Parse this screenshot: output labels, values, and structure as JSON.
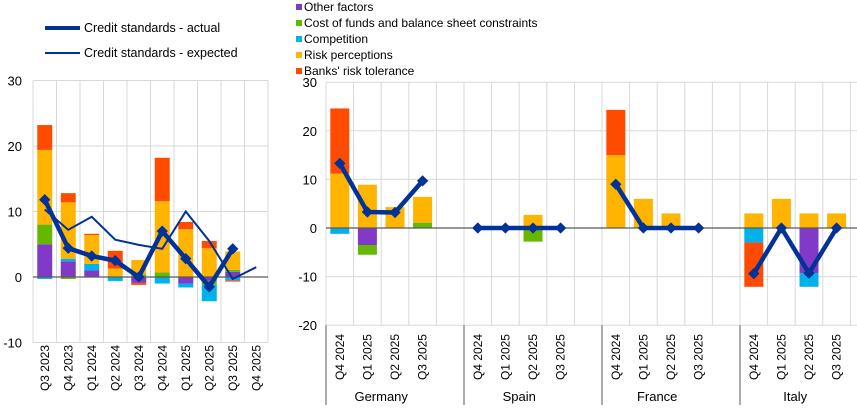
{
  "colors": {
    "other_factors": "#8139c8",
    "cost_of_funds": "#65b800",
    "competition": "#00b1ea",
    "risk_perceptions": "#ffb400",
    "risk_tolerance": "#ff4b00",
    "line": "#003299"
  },
  "legend": {
    "lines": [
      "Credit standards - actual",
      "Credit standards - expected"
    ],
    "bars": [
      "Other factors",
      "Cost of funds and balance sheet constraints",
      "Competition",
      "Risk perceptions",
      "Banks' risk tolerance"
    ]
  },
  "chart_data": [
    {
      "type": "bar",
      "stacked": true,
      "ylim": [
        -10,
        30
      ],
      "yticks": [
        -10,
        0,
        10,
        20,
        30
      ],
      "grid": true,
      "legend_placement": "top-left",
      "categories": [
        "Q3 2023",
        "Q4 2023",
        "Q1 2024",
        "Q2 2024",
        "Q3 2024",
        "Q4 2024",
        "Q1 2025",
        "Q2 2025",
        "Q3 2025",
        "Q4 2025"
      ],
      "series": [
        {
          "name": "Other factors",
          "values": [
            5.0,
            2.4,
            1.0,
            0,
            -0.9,
            0,
            -1.0,
            -0.6,
            0.8,
            null
          ]
        },
        {
          "name": "Cost of funds and balance sheet constraints",
          "values": [
            3.0,
            -0.3,
            0,
            0,
            0.4,
            0.7,
            0,
            -0.6,
            0.3,
            null
          ]
        },
        {
          "name": "Competition",
          "values": [
            -0.3,
            0.4,
            1.0,
            -0.6,
            0,
            -1.0,
            -0.6,
            -2.5,
            -0.5,
            null
          ]
        },
        {
          "name": "Risk perceptions",
          "values": [
            11.4,
            8.6,
            4.4,
            1.3,
            2.2,
            10.9,
            7.3,
            4.4,
            2.8,
            null
          ]
        },
        {
          "name": "Banks' risk tolerance",
          "values": [
            3.8,
            1.4,
            0.2,
            2.7,
            -0.3,
            6.6,
            1.1,
            1.1,
            -0.2,
            null
          ]
        }
      ],
      "lines": [
        {
          "name": "Credit standards - actual",
          "values": [
            11.8,
            4.4,
            3.2,
            2.5,
            0.0,
            7.0,
            2.8,
            -1.5,
            4.3,
            null
          ]
        },
        {
          "name": "Credit standards - expected",
          "values": [
            10.3,
            7.2,
            9.2,
            5.7,
            4.9,
            4.3,
            10.0,
            5.5,
            -0.3,
            1.5
          ]
        }
      ]
    },
    {
      "type": "bar",
      "stacked": true,
      "ylim": [
        -20,
        30
      ],
      "yticks": [
        -20,
        -10,
        0,
        10,
        20,
        30
      ],
      "grid": true,
      "legend_placement": "top-left",
      "groups": [
        {
          "name": "Germany",
          "categories": [
            "Q4 2024",
            "Q1 2025",
            "Q2 2025",
            "Q3 2025"
          ],
          "series": [
            [
              0,
              -3.5,
              0,
              0
            ],
            [
              0,
              -2.0,
              0,
              1.1
            ],
            [
              -1.2,
              0,
              0,
              0
            ],
            [
              11.2,
              8.9,
              4.3,
              5.3
            ],
            [
              13.4,
              0,
              0,
              0
            ]
          ],
          "actual": [
            13.3,
            3.3,
            3.2,
            9.7
          ]
        },
        {
          "name": "Spain",
          "categories": [
            "Q4 2024",
            "Q1 2025",
            "Q2 2025",
            "Q3 2025"
          ],
          "series": [
            [
              0,
              0,
              0,
              0
            ],
            [
              0,
              0,
              -2.8,
              0
            ],
            [
              0,
              0,
              0,
              0
            ],
            [
              0,
              0,
              2.7,
              0
            ],
            [
              0,
              0,
              0,
              0
            ]
          ],
          "actual": [
            0,
            0,
            0,
            0
          ]
        },
        {
          "name": "France",
          "categories": [
            "Q4 2024",
            "Q1 2025",
            "Q2 2025",
            "Q3 2025"
          ],
          "series": [
            [
              0,
              0,
              0,
              0
            ],
            [
              0,
              0,
              0,
              0
            ],
            [
              0,
              0,
              0,
              0
            ],
            [
              15.0,
              6.0,
              3.0,
              0
            ],
            [
              9.3,
              0,
              0,
              0
            ]
          ],
          "actual": [
            9.0,
            0,
            0,
            0
          ]
        },
        {
          "name": "Italy",
          "categories": [
            "Q4 2024",
            "Q1 2025",
            "Q2 2025",
            "Q3 2025"
          ],
          "series": [
            [
              0,
              0,
              -9.3,
              0
            ],
            [
              0,
              0,
              0,
              0
            ],
            [
              -3.0,
              0,
              -2.8,
              0
            ],
            [
              3.0,
              6.0,
              3.0,
              3.0
            ],
            [
              -9.1,
              0,
              0,
              0
            ]
          ],
          "actual": [
            -9.4,
            0,
            -9.3,
            0
          ]
        }
      ]
    }
  ]
}
